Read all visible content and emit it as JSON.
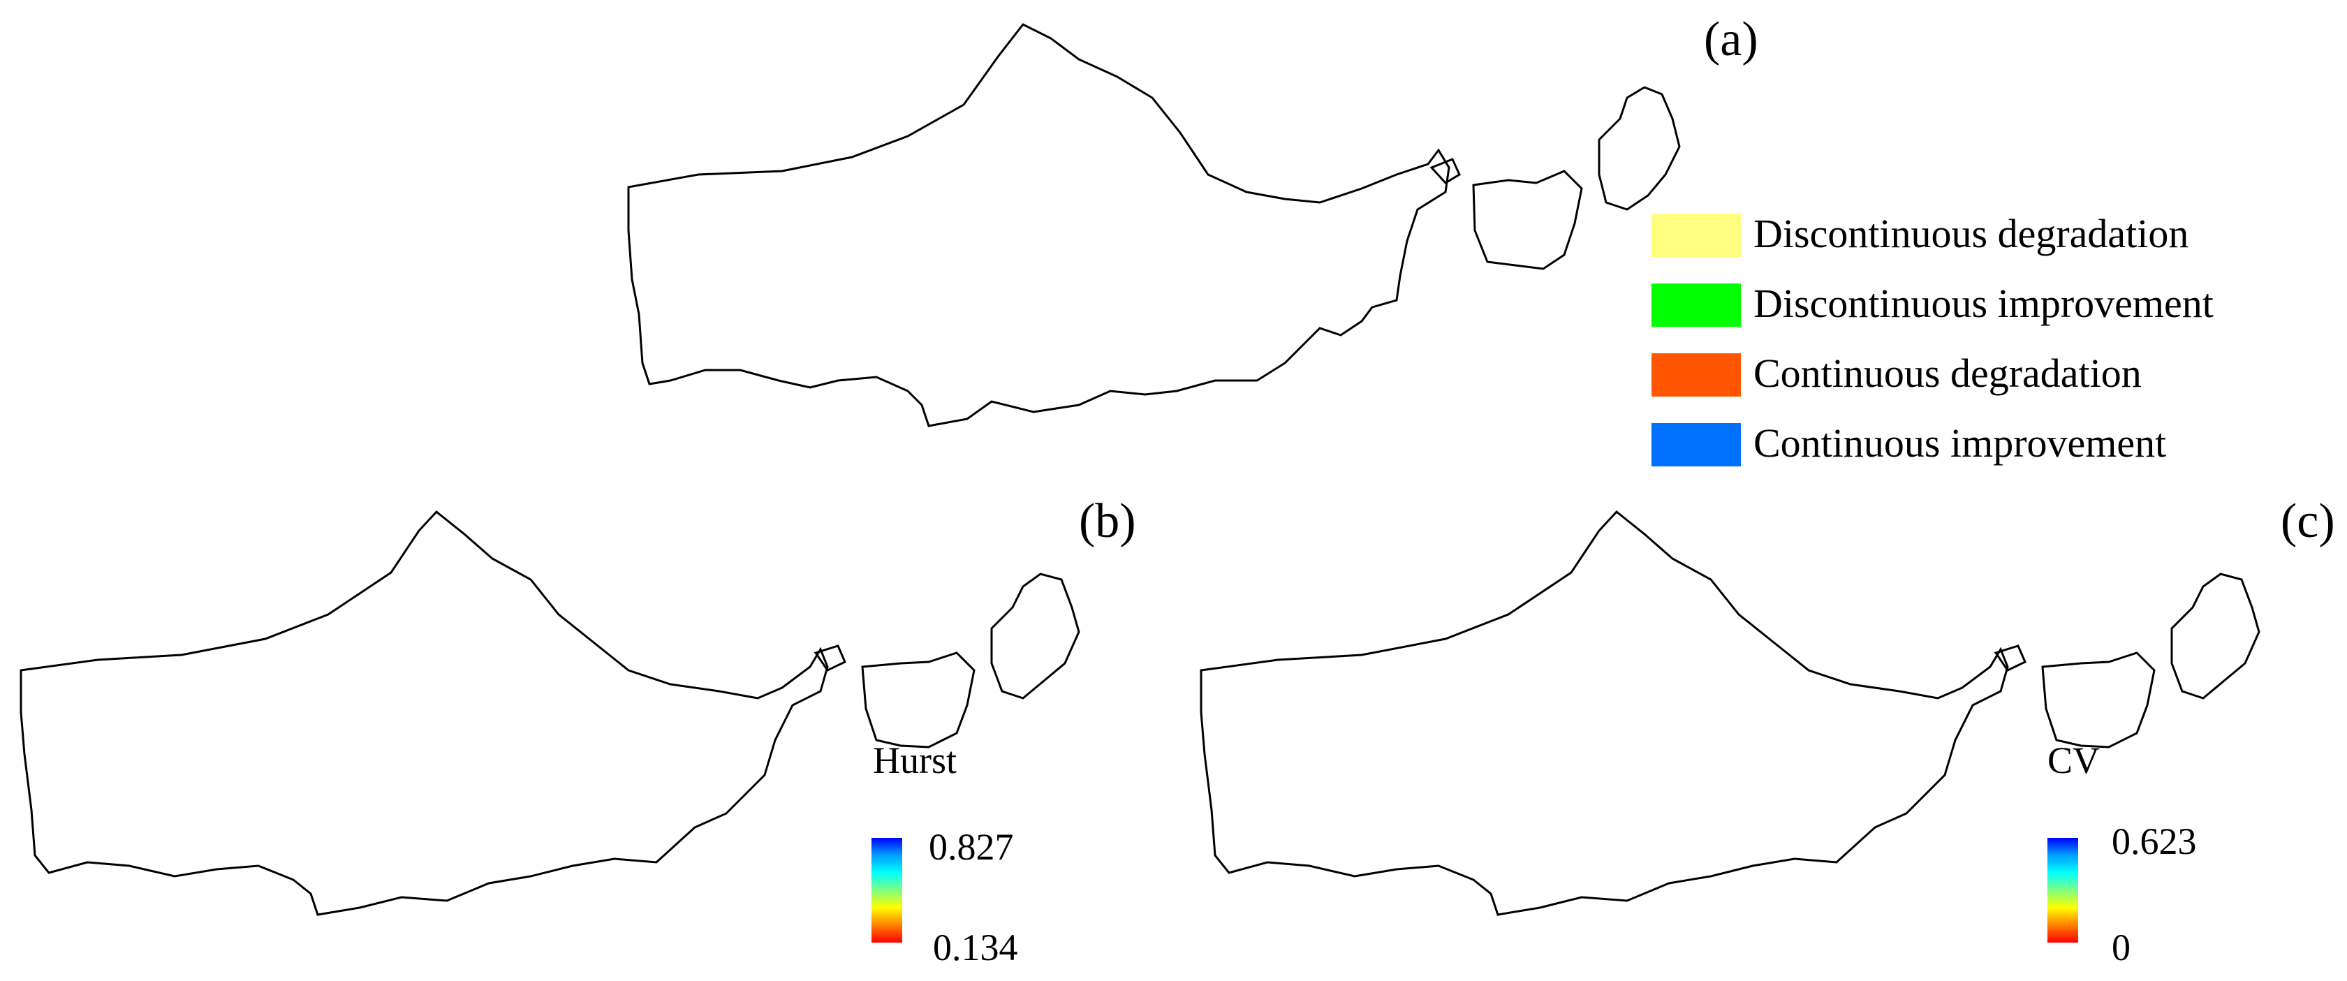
{
  "panels": {
    "a": {
      "label": "(a)"
    },
    "b": {
      "label": "(b)"
    },
    "c": {
      "label": "(c)"
    }
  },
  "legend_a": {
    "items": [
      {
        "label": "Discontinuous degradation",
        "color": "#ffff7f"
      },
      {
        "label": "Discontinuous improvement",
        "color": "#00ff00"
      },
      {
        "label": "Continuous degradation",
        "color": "#ff5500"
      },
      {
        "label": "Continuous improvement",
        "color": "#0070ff"
      }
    ]
  },
  "hurst_scale": {
    "title": "Hurst",
    "max": "0.827",
    "min": "0.134"
  },
  "cv_scale": {
    "title": "CV",
    "max": "0.623",
    "min": "0"
  },
  "colors": {
    "ramp": [
      "#0000ff",
      "#00a0ff",
      "#00ffff",
      "#80ff80",
      "#ffff00",
      "#ff8000",
      "#ff0000"
    ],
    "map_a_base": "#00ff00",
    "outline": "#000000"
  }
}
